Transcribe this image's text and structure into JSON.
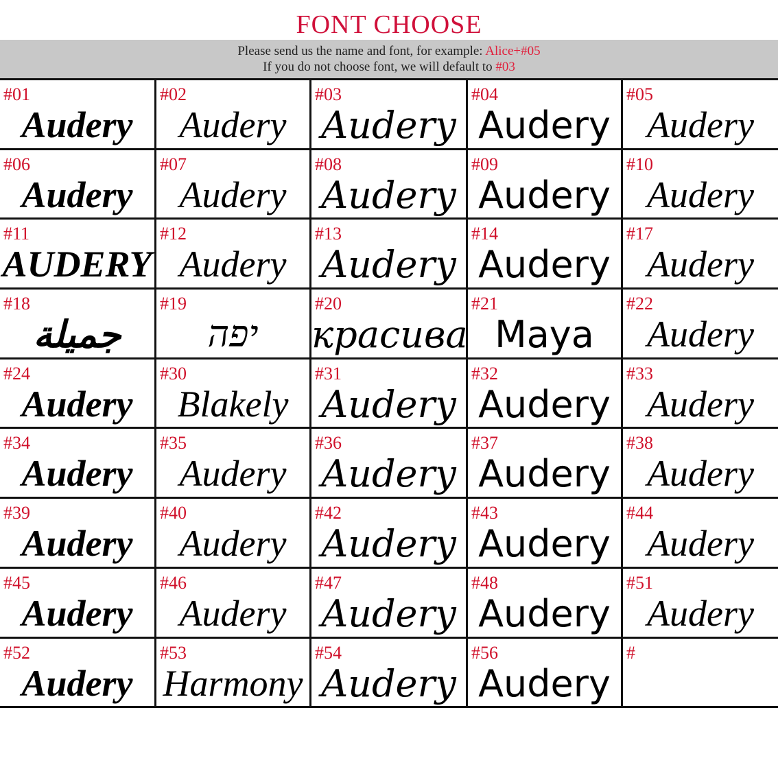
{
  "header": {
    "title": "FONT CHOOSE",
    "line1_text": "Please send us the name and font, for example: ",
    "line1_example": "Alice+#05",
    "line2_text": "If you do not choose  font, we will default to ",
    "line2_default": "#03"
  },
  "colors": {
    "accent": "#d0103a",
    "banner": "#c8c8c8",
    "grid_lines": "#111111"
  },
  "fonts": [
    {
      "number": "#01",
      "sample": "Audery"
    },
    {
      "number": "#02",
      "sample": "Audery"
    },
    {
      "number": "#03",
      "sample": "Audery"
    },
    {
      "number": "#04",
      "sample": "Audery"
    },
    {
      "number": "#05",
      "sample": "Audery"
    },
    {
      "number": "#06",
      "sample": "Audery"
    },
    {
      "number": "#07",
      "sample": "Audery"
    },
    {
      "number": "#08",
      "sample": "Audery"
    },
    {
      "number": "#09",
      "sample": "Audery"
    },
    {
      "number": "#10",
      "sample": "Audery"
    },
    {
      "number": "#11",
      "sample": "AUDERY"
    },
    {
      "number": "#12",
      "sample": "Audery"
    },
    {
      "number": "#13",
      "sample": "Audery"
    },
    {
      "number": "#14",
      "sample": "Audery"
    },
    {
      "number": "#17",
      "sample": "Audery"
    },
    {
      "number": "#18",
      "sample": "جميلة"
    },
    {
      "number": "#19",
      "sample": "יפה"
    },
    {
      "number": "#20",
      "sample": "красивая"
    },
    {
      "number": "#21",
      "sample": "Maya"
    },
    {
      "number": "#22",
      "sample": "Audery"
    },
    {
      "number": "#24",
      "sample": "Audery"
    },
    {
      "number": "#30",
      "sample": "Blakely"
    },
    {
      "number": "#31",
      "sample": "Audery"
    },
    {
      "number": "#32",
      "sample": "Audery"
    },
    {
      "number": "#33",
      "sample": "Audery"
    },
    {
      "number": "#34",
      "sample": "Audery"
    },
    {
      "number": "#35",
      "sample": "Audery"
    },
    {
      "number": "#36",
      "sample": "Audery"
    },
    {
      "number": "#37",
      "sample": "Audery"
    },
    {
      "number": "#38",
      "sample": "Audery"
    },
    {
      "number": "#39",
      "sample": "Audery"
    },
    {
      "number": "#40",
      "sample": "Audery"
    },
    {
      "number": "#42",
      "sample": "Audery"
    },
    {
      "number": "#43",
      "sample": "Audery"
    },
    {
      "number": "#44",
      "sample": "Audery"
    },
    {
      "number": "#45",
      "sample": "Audery"
    },
    {
      "number": "#46",
      "sample": "Audery"
    },
    {
      "number": "#47",
      "sample": "Audery"
    },
    {
      "number": "#48",
      "sample": "Audery"
    },
    {
      "number": "#51",
      "sample": "Audery"
    },
    {
      "number": "#52",
      "sample": "Audery"
    },
    {
      "number": "#53",
      "sample": "Harmony"
    },
    {
      "number": "#54",
      "sample": "Audery"
    },
    {
      "number": "#56",
      "sample": "Audery"
    },
    {
      "number": "#",
      "sample": ""
    }
  ]
}
